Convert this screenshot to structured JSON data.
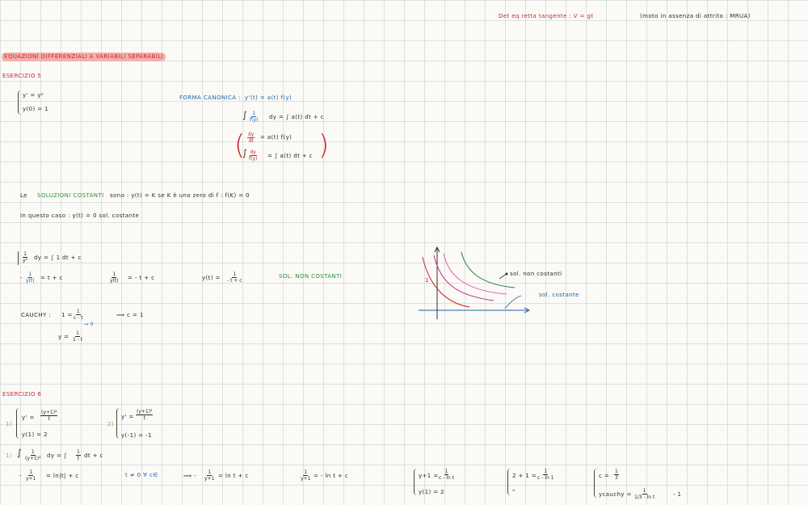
{
  "top_note": {
    "left": "Det eq retta tangente : V = gt",
    "right": "(moto in assenza di attrito : MRUA)"
  },
  "title": "EQUAZIONI DIFFERENZIALI A VARIABILI SEPARABILI",
  "es5": {
    "label": "ESERCIZIO 5",
    "sys1": "y' = y²",
    "sys2": "y(0) = 1",
    "forma_label": "FORMA CANONICA :",
    "forma_eq": "y'(t) = a(t) f(y)",
    "int1_num": "1",
    "int1_den": "f(y)",
    "int1_rest": "dy = ∫ a(t) dt + c",
    "p1_num": "dy",
    "p1_den": "dt",
    "p1_rest": "= a(t) f(y)",
    "p2_num": "dy",
    "p2_den": "f(y)",
    "p2_rest": "= ∫ a(t) dt + c",
    "costanti_pre": "Le",
    "costanti_hl": "SOLUZIONI COSTANTI",
    "costanti_post": "sono :   y(t) = K   se K è uno zero di f : f(K) = 0",
    "questo_caso": "In questo caso : y(t) = 0 sol. costante",
    "step1_num": "1",
    "step1_den": "y²",
    "step1_rest": "dy = ∫ 1 dt + c",
    "step2_pre": "-",
    "step2_num": "1",
    "step2_den": "y(t)",
    "step2_rest": "= t + c",
    "step3_num": "1",
    "step3_den": "y(t)",
    "step3_rest": "= - t + c",
    "step4_pre": "y(t) =",
    "step4_num": "1",
    "step4_den": "- t + c",
    "non_costanti": "SOL. NON COSTANTI",
    "cauchy_label": "CAUCHY :",
    "cauchy_pre": "1 =",
    "cauchy_num": "1",
    "cauchy_den": "c - t",
    "cauchy_sub": "→ 0",
    "cauchy_res": "⟹ c = 1",
    "final_pre": "y =",
    "final_num": "1",
    "final_den": "1 - t",
    "graph": {
      "label_non_const": "sol. non costanti",
      "label_const": "sol. costante",
      "y_tick": "1"
    }
  },
  "es6": {
    "label": "ESERCIZIO 6",
    "p1_label": "1)",
    "p1_eq_pre": "y' =",
    "p1_num": "(y+1)²",
    "p1_den": "t",
    "p1_cond": "y(1) = 2",
    "p2_label": "2)",
    "p2_eq_pre": "y' =",
    "p2_num": "(y+1)²",
    "p2_den": "t",
    "p2_cond": "y(-1) = -1",
    "s1_label": "1)",
    "s1_num": "1",
    "s1_den": "(y+1)²",
    "s1_mid": "dy = ∫",
    "s1_num2": "1",
    "s1_den2": "t",
    "s1_rest": "dt + c",
    "r_a_pre": "-",
    "r_a_num": "1",
    "r_a_den": "y+1",
    "r_a_rest": "= ln|t| + c",
    "t_cond": "t ≠ 0  ∀ c∈",
    "r_b_pre": "⟹ -",
    "r_b_num": "1",
    "r_b_den": "y+1",
    "r_b_rest": "= ln t + c",
    "r_c_num": "1",
    "r_c_den": "y+1",
    "r_c_rest": "= - ln t + c",
    "sys_a1_pre": "y+1 =",
    "sys_a1_num": "1",
    "sys_a1_den": "c - ln t",
    "sys_a2": "y(1) = 2",
    "sys_b1_pre": "2 + 1 =",
    "sys_b1_num": "1",
    "sys_b1_den": "c - ln 1",
    "sys_b2": "\"",
    "sys_c1_pre": "c =",
    "sys_c1_num": "1",
    "sys_c1_den": "3",
    "sys_c2_pre": "ycauchy =",
    "sys_c2_num": "1",
    "sys_c2_den": "1/3 - ln t",
    "sys_c2_post": "- 1"
  }
}
